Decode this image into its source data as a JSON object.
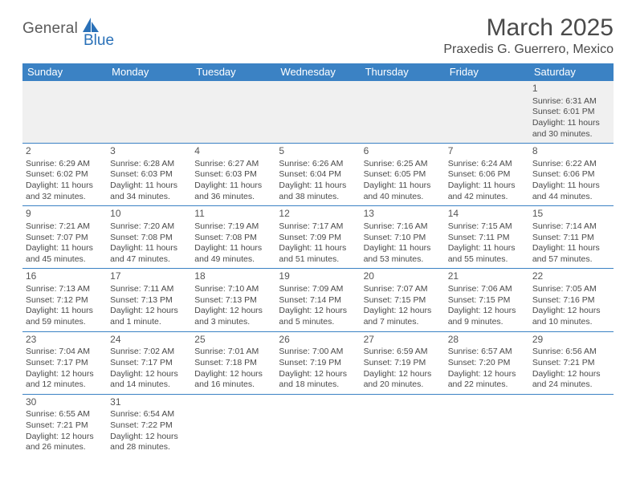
{
  "logo": {
    "text1": "General",
    "text2": "Blue"
  },
  "title": "March 2025",
  "location": "Praxedis G. Guerrero, Mexico",
  "colors": {
    "header_bg": "#3b82c4",
    "header_fg": "#ffffff",
    "text": "#4a4a4a",
    "logo_gray": "#5a5a5a",
    "logo_blue": "#2a71b8",
    "empty_row_bg": "#f0f0f0"
  },
  "day_labels": [
    "Sunday",
    "Monday",
    "Tuesday",
    "Wednesday",
    "Thursday",
    "Friday",
    "Saturday"
  ],
  "weeks": [
    [
      null,
      null,
      null,
      null,
      null,
      null,
      {
        "n": "1",
        "sr": "6:31 AM",
        "ss": "6:01 PM",
        "dl": "11 hours and 30 minutes."
      }
    ],
    [
      {
        "n": "2",
        "sr": "6:29 AM",
        "ss": "6:02 PM",
        "dl": "11 hours and 32 minutes."
      },
      {
        "n": "3",
        "sr": "6:28 AM",
        "ss": "6:03 PM",
        "dl": "11 hours and 34 minutes."
      },
      {
        "n": "4",
        "sr": "6:27 AM",
        "ss": "6:03 PM",
        "dl": "11 hours and 36 minutes."
      },
      {
        "n": "5",
        "sr": "6:26 AM",
        "ss": "6:04 PM",
        "dl": "11 hours and 38 minutes."
      },
      {
        "n": "6",
        "sr": "6:25 AM",
        "ss": "6:05 PM",
        "dl": "11 hours and 40 minutes."
      },
      {
        "n": "7",
        "sr": "6:24 AM",
        "ss": "6:06 PM",
        "dl": "11 hours and 42 minutes."
      },
      {
        "n": "8",
        "sr": "6:22 AM",
        "ss": "6:06 PM",
        "dl": "11 hours and 44 minutes."
      }
    ],
    [
      {
        "n": "9",
        "sr": "7:21 AM",
        "ss": "7:07 PM",
        "dl": "11 hours and 45 minutes."
      },
      {
        "n": "10",
        "sr": "7:20 AM",
        "ss": "7:08 PM",
        "dl": "11 hours and 47 minutes."
      },
      {
        "n": "11",
        "sr": "7:19 AM",
        "ss": "7:08 PM",
        "dl": "11 hours and 49 minutes."
      },
      {
        "n": "12",
        "sr": "7:17 AM",
        "ss": "7:09 PM",
        "dl": "11 hours and 51 minutes."
      },
      {
        "n": "13",
        "sr": "7:16 AM",
        "ss": "7:10 PM",
        "dl": "11 hours and 53 minutes."
      },
      {
        "n": "14",
        "sr": "7:15 AM",
        "ss": "7:11 PM",
        "dl": "11 hours and 55 minutes."
      },
      {
        "n": "15",
        "sr": "7:14 AM",
        "ss": "7:11 PM",
        "dl": "11 hours and 57 minutes."
      }
    ],
    [
      {
        "n": "16",
        "sr": "7:13 AM",
        "ss": "7:12 PM",
        "dl": "11 hours and 59 minutes."
      },
      {
        "n": "17",
        "sr": "7:11 AM",
        "ss": "7:13 PM",
        "dl": "12 hours and 1 minute."
      },
      {
        "n": "18",
        "sr": "7:10 AM",
        "ss": "7:13 PM",
        "dl": "12 hours and 3 minutes."
      },
      {
        "n": "19",
        "sr": "7:09 AM",
        "ss": "7:14 PM",
        "dl": "12 hours and 5 minutes."
      },
      {
        "n": "20",
        "sr": "7:07 AM",
        "ss": "7:15 PM",
        "dl": "12 hours and 7 minutes."
      },
      {
        "n": "21",
        "sr": "7:06 AM",
        "ss": "7:15 PM",
        "dl": "12 hours and 9 minutes."
      },
      {
        "n": "22",
        "sr": "7:05 AM",
        "ss": "7:16 PM",
        "dl": "12 hours and 10 minutes."
      }
    ],
    [
      {
        "n": "23",
        "sr": "7:04 AM",
        "ss": "7:17 PM",
        "dl": "12 hours and 12 minutes."
      },
      {
        "n": "24",
        "sr": "7:02 AM",
        "ss": "7:17 PM",
        "dl": "12 hours and 14 minutes."
      },
      {
        "n": "25",
        "sr": "7:01 AM",
        "ss": "7:18 PM",
        "dl": "12 hours and 16 minutes."
      },
      {
        "n": "26",
        "sr": "7:00 AM",
        "ss": "7:19 PM",
        "dl": "12 hours and 18 minutes."
      },
      {
        "n": "27",
        "sr": "6:59 AM",
        "ss": "7:19 PM",
        "dl": "12 hours and 20 minutes."
      },
      {
        "n": "28",
        "sr": "6:57 AM",
        "ss": "7:20 PM",
        "dl": "12 hours and 22 minutes."
      },
      {
        "n": "29",
        "sr": "6:56 AM",
        "ss": "7:21 PM",
        "dl": "12 hours and 24 minutes."
      }
    ],
    [
      {
        "n": "30",
        "sr": "6:55 AM",
        "ss": "7:21 PM",
        "dl": "12 hours and 26 minutes."
      },
      {
        "n": "31",
        "sr": "6:54 AM",
        "ss": "7:22 PM",
        "dl": "12 hours and 28 minutes."
      },
      null,
      null,
      null,
      null,
      null
    ]
  ],
  "labels": {
    "sunrise_prefix": "Sunrise: ",
    "sunset_prefix": "Sunset: ",
    "daylight_prefix": "Daylight: "
  }
}
